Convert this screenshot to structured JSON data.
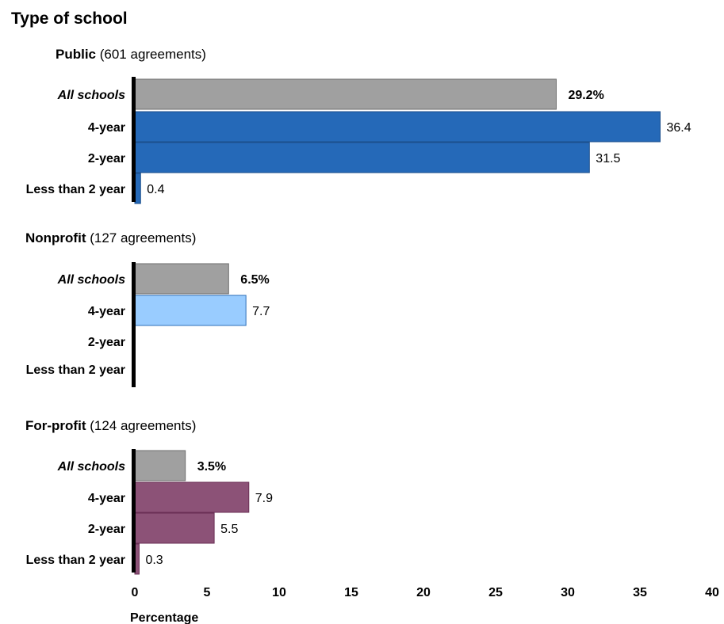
{
  "chart_data": {
    "type": "bar",
    "orientation": "horizontal",
    "title": "Type of school",
    "xlabel": "Percentage",
    "xlim": [
      0,
      40
    ],
    "xticks": [
      "0",
      "5",
      "10",
      "15",
      "20",
      "25",
      "30",
      "35",
      "40"
    ],
    "grid": false,
    "groups": [
      {
        "name": "Public",
        "count_label": "(601 agreements)",
        "color": "#2569b8",
        "categories": [
          "All schools",
          "4-year",
          "2-year",
          "Less than 2 year"
        ],
        "values": [
          29.2,
          36.4,
          31.5,
          0.4
        ],
        "value_labels": [
          "29.2%",
          "36.4",
          "31.5",
          "0.4"
        ]
      },
      {
        "name": "Nonprofit",
        "count_label": "(127 agreements)",
        "color": "#99ccff",
        "categories": [
          "All schools",
          "4-year",
          "2-year",
          "Less than 2 year"
        ],
        "values": [
          6.5,
          7.7,
          null,
          null
        ],
        "value_labels": [
          "6.5%",
          "7.7",
          "",
          ""
        ]
      },
      {
        "name": "For-profit",
        "count_label": "(124 agreements)",
        "color": "#8c5277",
        "categories": [
          "All schools",
          "4-year",
          "2-year",
          "Less than 2 year"
        ],
        "values": [
          3.5,
          7.9,
          5.5,
          0.3
        ],
        "value_labels": [
          "3.5%",
          "7.9",
          "5.5",
          "0.3"
        ]
      }
    ],
    "all_schools_color": "#a0a0a0"
  }
}
